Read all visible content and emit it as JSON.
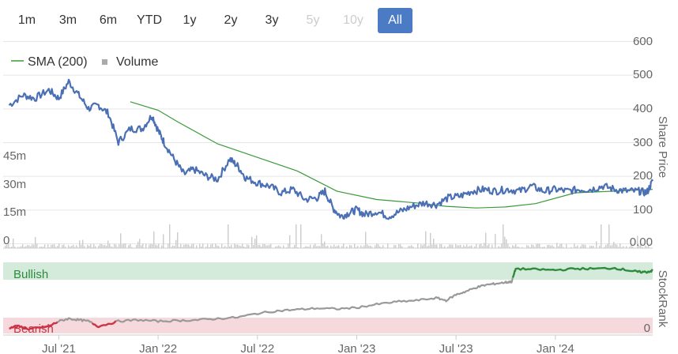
{
  "range_selector": {
    "buttons": [
      {
        "label": "1m",
        "state": "normal"
      },
      {
        "label": "3m",
        "state": "normal"
      },
      {
        "label": "6m",
        "state": "normal"
      },
      {
        "label": "YTD",
        "state": "normal"
      },
      {
        "label": "1y",
        "state": "normal"
      },
      {
        "label": "2y",
        "state": "normal"
      },
      {
        "label": "3y",
        "state": "normal"
      },
      {
        "label": "5y",
        "state": "disabled"
      },
      {
        "label": "10y",
        "state": "disabled"
      },
      {
        "label": "All",
        "state": "active"
      }
    ]
  },
  "legend": {
    "sma_label": "SMA (200)",
    "volume_label": "Volume"
  },
  "bands": {
    "bullish_label": "Bullish",
    "bearish_label": "Bearish"
  },
  "colors": {
    "price": "#4a6fb5",
    "sma": "#3a9a3a",
    "volume": "#cccccc",
    "rank_neutral": "#999999",
    "rank_bullish": "#2e8b3e",
    "rank_bearish": "#cc3344",
    "bullish_band": "#d4eadb",
    "bearish_band": "#f6d9dd",
    "active_button": "#4a7bc4"
  },
  "chart_data": [
    {
      "type": "line",
      "name": "price-panel",
      "yaxis_right": {
        "label": "Share Price",
        "ticks": [
          "600",
          "500",
          "400",
          "300",
          "200",
          "100",
          "0.00"
        ],
        "range": [
          0,
          600
        ]
      },
      "yaxis_left": {
        "label": "",
        "ticks": [
          "45m",
          "30m",
          "15m",
          "0"
        ],
        "range": [
          0,
          60
        ]
      },
      "xaxis": {
        "ticks": [
          "Jul '21",
          "Jan '22",
          "Jul '22",
          "Jan '23",
          "Jul '23",
          "Jan '24"
        ]
      },
      "series": [
        {
          "name": "Price",
          "x": [
            2021.25,
            2021.32,
            2021.38,
            2021.45,
            2021.5,
            2021.55,
            2021.6,
            2021.65,
            2021.7,
            2021.75,
            2021.8,
            2021.86,
            2021.92,
            2021.97,
            2022.0,
            2022.03,
            2022.08,
            2022.13,
            2022.18,
            2022.24,
            2022.3,
            2022.36,
            2022.4,
            2022.44,
            2022.5,
            2022.56,
            2022.62,
            2022.68,
            2022.74,
            2022.8,
            2022.84,
            2022.88,
            2022.92,
            2022.96,
            2023.0,
            2023.04,
            2023.1,
            2023.16,
            2023.22,
            2023.28,
            2023.34,
            2023.4,
            2023.46,
            2023.52,
            2023.58,
            2023.64,
            2023.7,
            2023.76,
            2023.82,
            2023.88,
            2023.94,
            2024.0,
            2024.06,
            2024.12,
            2024.18,
            2024.24,
            2024.3,
            2024.36,
            2024.42,
            2024.46,
            2024.49
          ],
          "y": [
            410,
            440,
            430,
            455,
            430,
            480,
            440,
            400,
            410,
            385,
            300,
            340,
            340,
            380,
            335,
            300,
            250,
            205,
            220,
            200,
            190,
            250,
            230,
            195,
            180,
            170,
            150,
            160,
            130,
            135,
            155,
            105,
            80,
            90,
            100,
            85,
            95,
            80,
            95,
            110,
            120,
            115,
            135,
            140,
            155,
            160,
            155,
            160,
            155,
            170,
            155,
            160,
            155,
            160,
            160,
            170,
            160,
            155,
            155,
            150,
            185
          ]
        },
        {
          "name": "SMA (200)",
          "x": [
            2021.86,
            2022.0,
            2022.1,
            2022.3,
            2022.5,
            2022.7,
            2022.9,
            2023.1,
            2023.3,
            2023.45,
            2023.6,
            2023.75,
            2023.9,
            2024.1,
            2024.3,
            2024.49
          ],
          "y": [
            420,
            395,
            360,
            295,
            255,
            215,
            155,
            130,
            120,
            110,
            105,
            108,
            118,
            150,
            155,
            160
          ]
        }
      ]
    },
    {
      "type": "line",
      "name": "stockrank-panel",
      "yaxis_right": {
        "label": "StockRank",
        "ticks": [
          "0"
        ],
        "range": [
          0,
          100
        ]
      },
      "series": [
        {
          "name": "StockRank",
          "x": [
            2021.25,
            2021.3,
            2021.35,
            2021.4,
            2021.45,
            2021.5,
            2021.55,
            2021.6,
            2021.65,
            2021.7,
            2021.8,
            2021.9,
            2022.0,
            2022.1,
            2022.2,
            2022.3,
            2022.4,
            2022.5,
            2022.6,
            2022.7,
            2022.8,
            2022.9,
            2023.0,
            2023.1,
            2023.2,
            2023.3,
            2023.4,
            2023.45,
            2023.5,
            2023.55,
            2023.6,
            2023.65,
            2023.7,
            2023.75,
            2023.78,
            2023.8,
            2023.9,
            2024.0,
            2024.1,
            2024.2,
            2024.3,
            2024.38,
            2024.42,
            2024.46,
            2024.49
          ],
          "y": [
            4,
            6,
            2,
            4,
            6,
            14,
            18,
            16,
            14,
            6,
            14,
            16,
            14,
            15,
            16,
            18,
            20,
            26,
            30,
            32,
            34,
            33,
            35,
            40,
            44,
            46,
            50,
            46,
            55,
            60,
            66,
            70,
            72,
            74,
            75,
            95,
            94,
            93,
            95,
            95,
            96,
            92,
            90,
            90,
            92
          ]
        }
      ]
    }
  ]
}
